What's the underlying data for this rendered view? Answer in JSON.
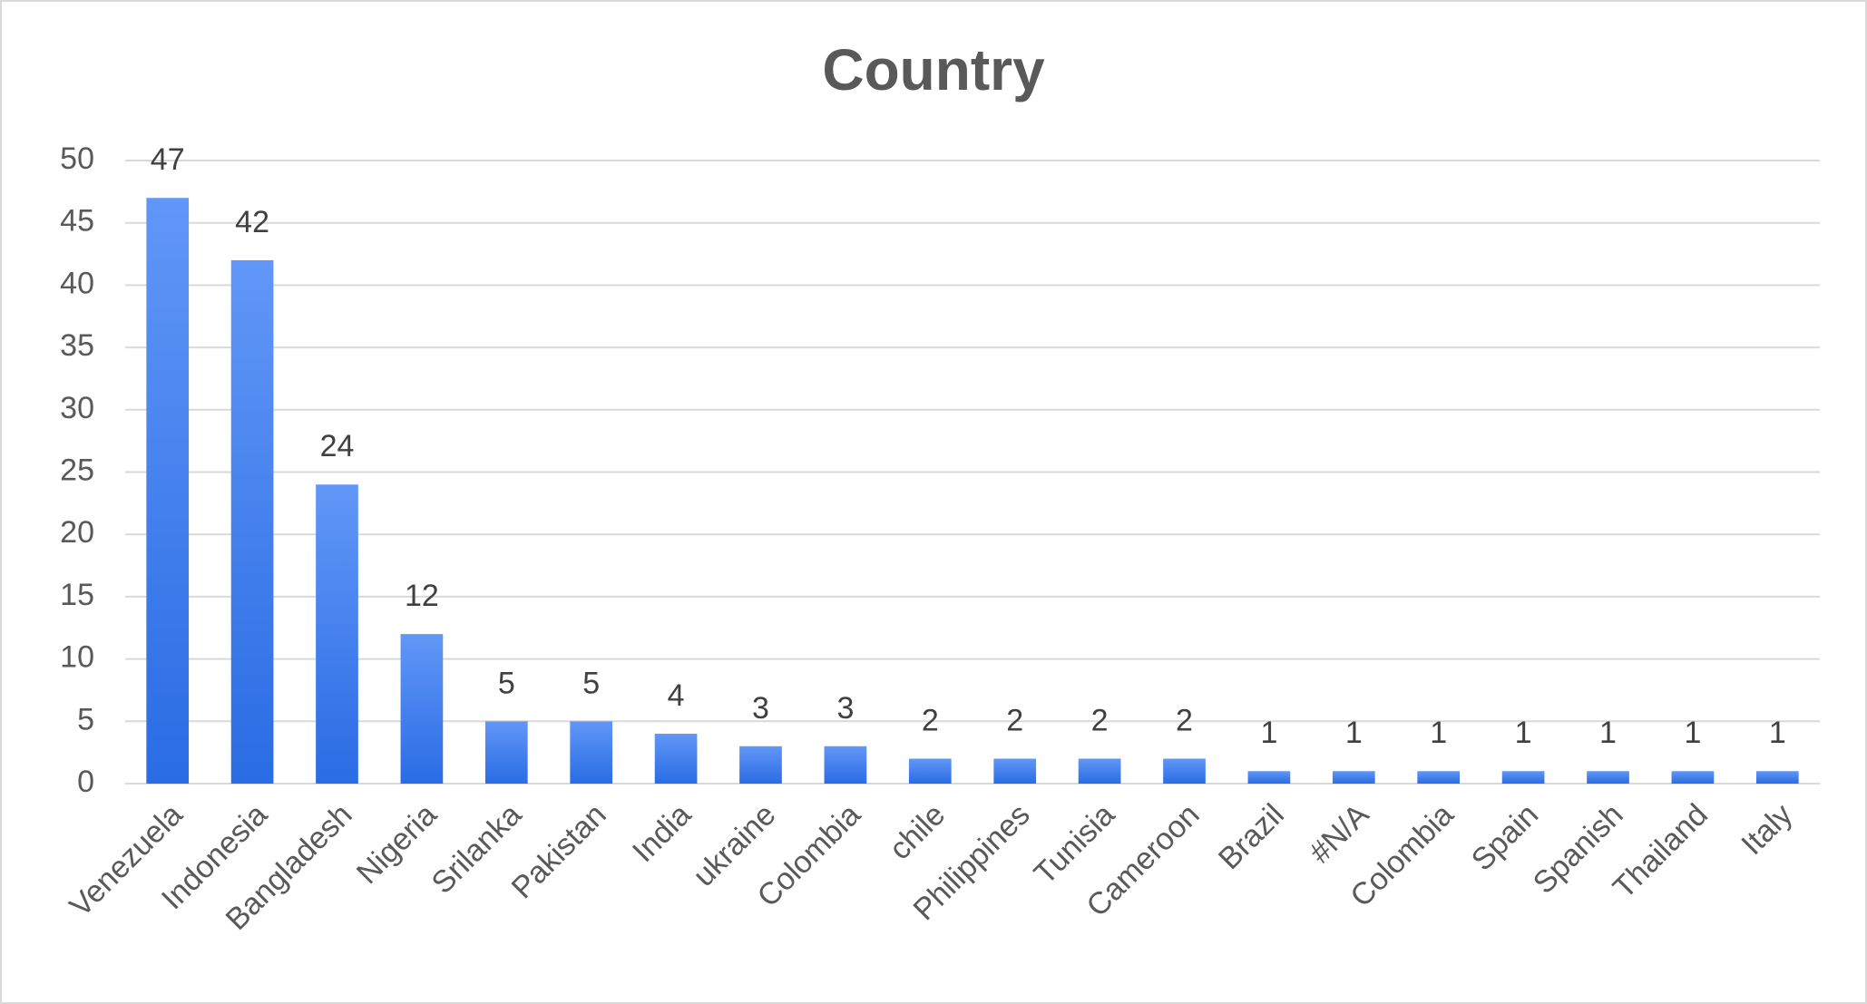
{
  "chart_data": {
    "type": "bar",
    "title": "Country",
    "categories": [
      "Venezuela",
      "Indonesia",
      "Bangladesh",
      "Nigeria",
      "Srilanka",
      "Pakistan",
      "India",
      "ukraine",
      "Colombia",
      "chile",
      "Philippines",
      "Tunisia",
      "Cameroon",
      "Brazil",
      "#N/A",
      "Colombia",
      "Spain",
      "Spanish",
      "Thailand",
      "Italy"
    ],
    "values": [
      47,
      42,
      24,
      12,
      5,
      5,
      4,
      3,
      3,
      2,
      2,
      2,
      2,
      1,
      1,
      1,
      1,
      1,
      1,
      1
    ],
    "color": "#2f74ec",
    "ylim": [
      0,
      50
    ],
    "yticks": [
      0,
      5,
      10,
      15,
      20,
      25,
      30,
      35,
      40,
      45,
      50
    ],
    "grid": true
  }
}
